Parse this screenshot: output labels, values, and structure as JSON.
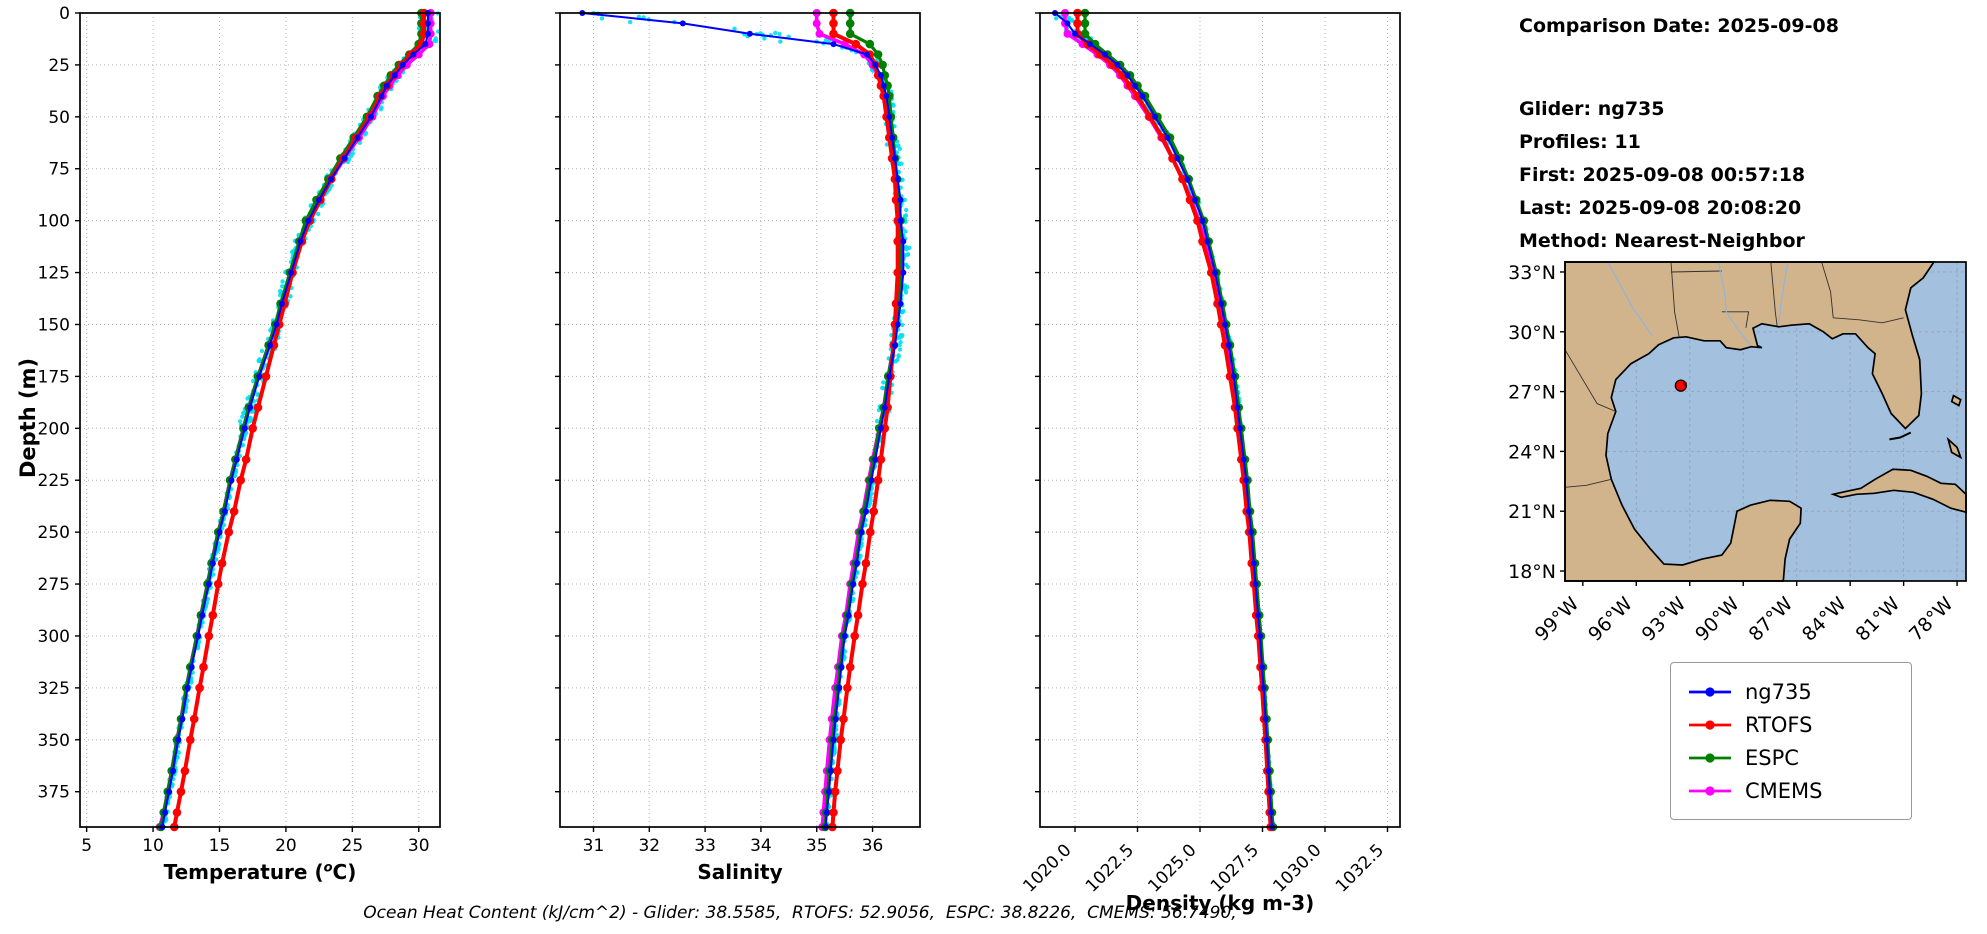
{
  "info": {
    "lines": [
      "Comparison Date: 2025-09-08",
      "",
      "Glider: ng735",
      "Profiles: 11",
      "First: 2025-09-08 00:57:18",
      "Last: 2025-09-08 20:08:20",
      "Method: Nearest-Neighbor"
    ]
  },
  "caption": "Ocean Heat Content (kJ/cm^2) - Glider: 38.5585,  RTOFS: 52.9056,  ESPC: 38.8226,  CMEMS: 56.7490,",
  "axis_labels": {
    "depth": "Depth (m)",
    "temperature_prefix": "Temperature (",
    "temperature_sup": "o",
    "temperature_suffix": "C)",
    "salinity": "Salinity",
    "density": "Density (kg m-3)"
  },
  "legend": {
    "items": [
      {
        "label": "ng735",
        "color": "#0000ff"
      },
      {
        "label": "RTOFS",
        "color": "#ff0000"
      },
      {
        "label": "ESPC",
        "color": "#008000"
      },
      {
        "label": "CMEMS",
        "color": "#ff00ff"
      }
    ]
  },
  "map": {
    "land_color": "#d2b48c",
    "water_color": "#a3c0de",
    "marker": {
      "lat": 27.3,
      "lon": -93.5,
      "color": "#ff0000"
    },
    "lat_ticks": [
      {
        "label": "33°N",
        "value": 33
      },
      {
        "label": "30°N",
        "value": 30
      },
      {
        "label": "27°N",
        "value": 27
      },
      {
        "label": "24°N",
        "value": 24
      },
      {
        "label": "21°N",
        "value": 21
      },
      {
        "label": "18°N",
        "value": 18
      }
    ],
    "lon_ticks": [
      {
        "label": "99°W",
        "value": -99
      },
      {
        "label": "96°W",
        "value": -96
      },
      {
        "label": "93°W",
        "value": -93
      },
      {
        "label": "90°W",
        "value": -90
      },
      {
        "label": "87°W",
        "value": -87
      },
      {
        "label": "84°W",
        "value": -84
      },
      {
        "label": "81°W",
        "value": -81
      },
      {
        "label": "78°W",
        "value": -78
      }
    ]
  },
  "chart_data": {
    "type": "line",
    "orientation": "vertical-profile",
    "ylabel": "Depth (m)",
    "ylim": [
      0,
      392
    ],
    "yticks": [
      0,
      25,
      50,
      75,
      100,
      125,
      150,
      175,
      200,
      225,
      250,
      275,
      300,
      325,
      350,
      375
    ],
    "depths_m": [
      0,
      5,
      10,
      15,
      20,
      25,
      30,
      35,
      40,
      50,
      60,
      70,
      80,
      90,
      100,
      110,
      125,
      140,
      150,
      160,
      175,
      190,
      200,
      215,
      225,
      240,
      250,
      265,
      275,
      290,
      300,
      315,
      325,
      340,
      350,
      365,
      375,
      385,
      392
    ],
    "series_names": [
      "ng735",
      "RTOFS",
      "ESPC",
      "CMEMS"
    ],
    "series_colors": {
      "ng735": "#0000ff",
      "RTOFS": "#ff0000",
      "ESPC": "#008000",
      "CMEMS": "#ff00ff"
    },
    "scatter_color": "#00e0ee",
    "scatter_name": "glider raw observations",
    "ohc_kj_cm2": {
      "glider": 38.5585,
      "rtofs": 52.9056,
      "espc": 38.8226,
      "cmems": 56.749
    },
    "panels": [
      {
        "key": "temperature",
        "xlabel": "Temperature (°C)",
        "xlim": [
          4.5,
          31.6
        ],
        "xticks": [
          5,
          10,
          15,
          20,
          25,
          30
        ],
        "xtick_labels": [
          "5",
          "10",
          "15",
          "20",
          "25",
          "30"
        ],
        "rotate_xticks": false,
        "scatter": {
          "count": 540,
          "jitter": 0.3,
          "surface_jitter": 0.8
        },
        "values": {
          "ng735": [
            30.7,
            30.7,
            30.7,
            30.5,
            29.6,
            28.8,
            28.2,
            27.6,
            27.2,
            26.4,
            25.4,
            24.4,
            23.4,
            22.5,
            21.7,
            21.1,
            20.4,
            19.7,
            19.3,
            18.8,
            18.0,
            17.3,
            16.9,
            16.3,
            15.9,
            15.4,
            15.0,
            14.5,
            14.2,
            13.7,
            13.4,
            12.9,
            12.6,
            12.2,
            11.9,
            11.5,
            11.2,
            10.9,
            10.7
          ],
          "RTOFS": [
            30.4,
            30.4,
            30.4,
            30.2,
            29.4,
            28.7,
            28.1,
            27.6,
            27.1,
            26.3,
            25.3,
            24.3,
            23.4,
            22.6,
            21.8,
            21.2,
            20.5,
            19.9,
            19.5,
            19.1,
            18.5,
            17.9,
            17.5,
            17.0,
            16.6,
            16.1,
            15.7,
            15.2,
            14.9,
            14.5,
            14.2,
            13.8,
            13.5,
            13.1,
            12.8,
            12.4,
            12.1,
            11.8,
            11.6
          ],
          "ESPC": [
            30.2,
            30.2,
            30.2,
            30.0,
            29.3,
            28.5,
            27.9,
            27.4,
            26.9,
            26.1,
            25.1,
            24.1,
            23.2,
            22.3,
            21.5,
            21.0,
            20.3,
            19.6,
            19.2,
            18.7,
            17.9,
            17.2,
            16.8,
            16.2,
            15.8,
            15.3,
            14.9,
            14.4,
            14.1,
            13.6,
            13.3,
            12.8,
            12.5,
            12.1,
            11.8,
            11.4,
            11.1,
            10.8,
            10.6
          ],
          "CMEMS": [
            30.9,
            30.9,
            30.9,
            30.8,
            30.0,
            29.1,
            28.4,
            27.8,
            27.3,
            26.5,
            25.5,
            24.4,
            23.4,
            22.5,
            21.6,
            21.1,
            20.4,
            19.7,
            19.2,
            18.7,
            17.9,
            17.2,
            16.8,
            16.2,
            15.8,
            15.3,
            14.9,
            14.4,
            14.1,
            13.6,
            13.3,
            12.8,
            12.5,
            12.1,
            11.8,
            11.4,
            11.1,
            10.8,
            10.5
          ]
        }
      },
      {
        "key": "salinity",
        "xlabel": "Salinity",
        "xlim": [
          30.4,
          36.85
        ],
        "xticks": [
          31,
          32,
          33,
          34,
          35,
          36
        ],
        "xtick_labels": [
          "31",
          "32",
          "33",
          "34",
          "35",
          "36"
        ],
        "rotate_xticks": false,
        "scatter": {
          "count": 440,
          "jitter": 0.07,
          "surface_jitter": 0.8
        },
        "values": {
          "ng735": [
            30.8,
            32.6,
            33.8,
            35.3,
            35.9,
            36.05,
            36.15,
            36.2,
            36.25,
            36.3,
            36.35,
            36.4,
            36.45,
            36.5,
            36.5,
            36.55,
            36.55,
            36.5,
            36.45,
            36.4,
            36.3,
            36.22,
            36.15,
            36.05,
            35.98,
            35.88,
            35.8,
            35.72,
            35.65,
            35.57,
            35.5,
            35.44,
            35.4,
            35.34,
            35.3,
            35.25,
            35.22,
            35.18,
            35.16
          ],
          "RTOFS": [
            35.3,
            35.3,
            35.3,
            35.7,
            35.95,
            36.05,
            36.1,
            36.15,
            36.2,
            36.25,
            36.3,
            36.35,
            36.4,
            36.42,
            36.45,
            36.45,
            36.45,
            36.42,
            36.4,
            36.38,
            36.32,
            36.27,
            36.22,
            36.15,
            36.1,
            36.02,
            35.96,
            35.88,
            35.82,
            35.74,
            35.68,
            35.6,
            35.55,
            35.48,
            35.43,
            35.37,
            35.33,
            35.3,
            35.28
          ],
          "ESPC": [
            35.6,
            35.6,
            35.6,
            35.95,
            36.1,
            36.18,
            36.22,
            36.27,
            36.3,
            36.33,
            36.37,
            36.4,
            36.44,
            36.47,
            36.5,
            36.5,
            36.5,
            36.46,
            36.42,
            36.38,
            36.28,
            36.2,
            36.12,
            36.02,
            35.95,
            35.85,
            35.78,
            35.7,
            35.63,
            35.55,
            35.48,
            35.42,
            35.38,
            35.32,
            35.28,
            35.23,
            35.2,
            35.17,
            35.15
          ],
          "CMEMS": [
            35.0,
            35.0,
            35.05,
            35.5,
            35.85,
            36.0,
            36.1,
            36.15,
            36.2,
            36.27,
            36.32,
            36.38,
            36.42,
            36.46,
            36.5,
            36.52,
            36.52,
            36.47,
            36.43,
            36.38,
            36.28,
            36.2,
            36.12,
            36.0,
            35.93,
            35.83,
            35.75,
            35.66,
            35.6,
            35.52,
            35.45,
            35.38,
            35.33,
            35.27,
            35.23,
            35.18,
            35.15,
            35.12,
            35.1
          ]
        }
      },
      {
        "key": "density",
        "xlabel": "Density (kg m-3)",
        "xlim": [
          1018.6,
          1033.0
        ],
        "xticks": [
          1020,
          1022.5,
          1025,
          1027.5,
          1030,
          1032.5
        ],
        "xtick_labels": [
          "1020.0",
          "1022.5",
          "1025.0",
          "1027.5",
          "1030.0",
          "1032.5"
        ],
        "rotate_xticks": true,
        "scatter": {
          "count": 400,
          "jitter": 0.07,
          "surface_jitter": 0.4
        },
        "values": {
          "ng735": [
            1019.2,
            1019.7,
            1020.0,
            1020.6,
            1021.2,
            1021.7,
            1022.1,
            1022.4,
            1022.7,
            1023.2,
            1023.7,
            1024.1,
            1024.5,
            1024.8,
            1025.1,
            1025.3,
            1025.6,
            1025.85,
            1026.0,
            1026.15,
            1026.35,
            1026.5,
            1026.6,
            1026.75,
            1026.85,
            1026.95,
            1027.05,
            1027.15,
            1027.22,
            1027.32,
            1027.4,
            1027.48,
            1027.54,
            1027.62,
            1027.67,
            1027.74,
            1027.79,
            1027.84,
            1027.88
          ],
          "RTOFS": [
            1020.1,
            1020.1,
            1020.1,
            1020.5,
            1021.0,
            1021.5,
            1021.9,
            1022.2,
            1022.5,
            1023.0,
            1023.5,
            1023.9,
            1024.3,
            1024.6,
            1024.9,
            1025.1,
            1025.45,
            1025.7,
            1025.85,
            1026.0,
            1026.2,
            1026.4,
            1026.5,
            1026.65,
            1026.75,
            1026.87,
            1026.97,
            1027.07,
            1027.15,
            1027.25,
            1027.33,
            1027.42,
            1027.48,
            1027.56,
            1027.62,
            1027.69,
            1027.74,
            1027.79,
            1027.83
          ],
          "ESPC": [
            1020.4,
            1020.4,
            1020.4,
            1020.8,
            1021.3,
            1021.8,
            1022.2,
            1022.5,
            1022.8,
            1023.3,
            1023.8,
            1024.2,
            1024.55,
            1024.85,
            1025.15,
            1025.35,
            1025.65,
            1025.9,
            1026.05,
            1026.2,
            1026.4,
            1026.55,
            1026.65,
            1026.8,
            1026.9,
            1027.0,
            1027.1,
            1027.2,
            1027.27,
            1027.37,
            1027.44,
            1027.52,
            1027.58,
            1027.66,
            1027.71,
            1027.78,
            1027.83,
            1027.88,
            1027.92
          ],
          "CMEMS": [
            1019.6,
            1019.6,
            1019.7,
            1020.3,
            1020.9,
            1021.4,
            1021.8,
            1022.1,
            1022.4,
            1022.95,
            1023.45,
            1023.9,
            1024.3,
            1024.65,
            1024.95,
            1025.2,
            1025.5,
            1025.78,
            1025.95,
            1026.1,
            1026.3,
            1026.47,
            1026.57,
            1026.72,
            1026.82,
            1026.93,
            1027.03,
            1027.13,
            1027.2,
            1027.3,
            1027.38,
            1027.46,
            1027.52,
            1027.6,
            1027.66,
            1027.73,
            1027.78,
            1027.83,
            1027.87
          ]
        }
      }
    ]
  }
}
